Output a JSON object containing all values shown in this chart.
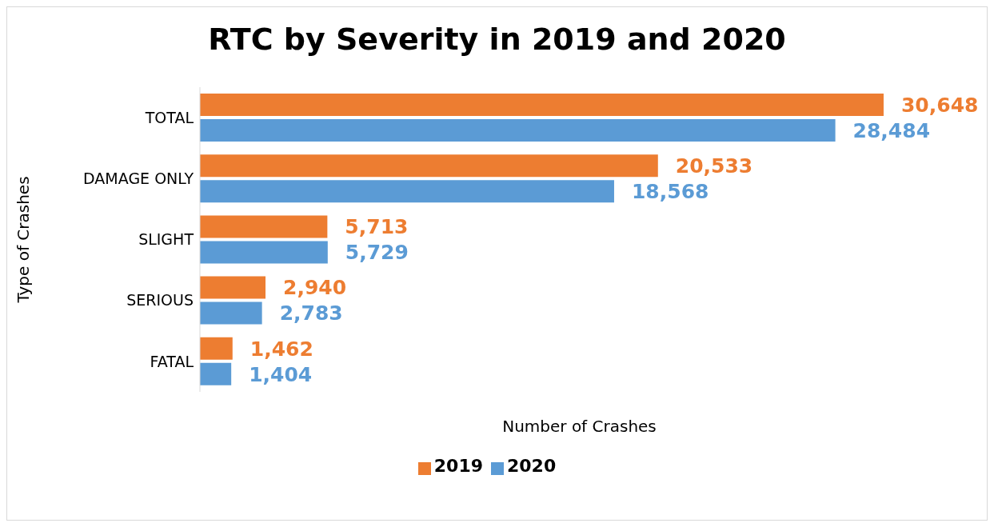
{
  "chart_data": {
    "type": "bar",
    "orientation": "horizontal",
    "title": "RTC by Severity in 2019 and 2020",
    "xlabel": "Number of Crashes",
    "ylabel": "Type of Crashes",
    "categories": [
      "TOTAL",
      "DAMAGE ONLY",
      "SLIGHT",
      "SERIOUS",
      "FATAL"
    ],
    "series": [
      {
        "name": "2019",
        "color": "#ed7d31",
        "values": [
          30648,
          20533,
          5713,
          2940,
          1462
        ],
        "value_labels": [
          "30,648",
          "20,533",
          "5,713",
          "2,940",
          "1,462"
        ]
      },
      {
        "name": "2020",
        "color": "#5b9bd5",
        "values": [
          28484,
          18568,
          5729,
          2783,
          1404
        ],
        "value_labels": [
          "28,484",
          "18,568",
          "5,729",
          "2,783",
          "1,404"
        ]
      }
    ],
    "tick_labels": "y",
    "legend": "bottom"
  }
}
